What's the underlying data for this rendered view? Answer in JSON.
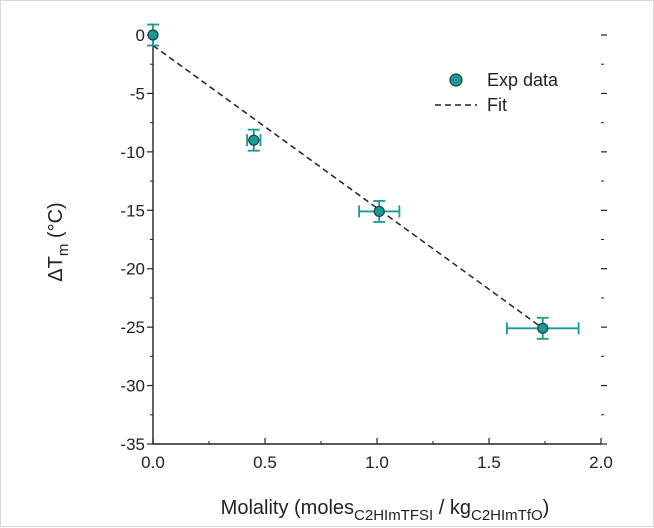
{
  "chart_data": {
    "type": "scatter",
    "x_label_parts": {
      "prefix": "Molality (moles",
      "sub1": "C2HImTFSI",
      "middle": " / kg",
      "sub2": "C2HImTfO",
      "suffix": ")"
    },
    "y_label_parts": {
      "prefix": "ΔT",
      "sub": "m",
      "suffix": " (°C)"
    },
    "xlim": [
      0.0,
      2.0
    ],
    "ylim": [
      -35,
      0
    ],
    "x_ticks": [
      0.0,
      0.5,
      1.0,
      1.5,
      2.0
    ],
    "x_tick_labels": [
      "0.0",
      "0.5",
      "1.0",
      "1.5",
      "2.0"
    ],
    "y_ticks": [
      0,
      -5,
      -10,
      -15,
      -20,
      -25,
      -30,
      -35
    ],
    "y_tick_labels": [
      "0",
      "-5",
      "-10",
      "-15",
      "-20",
      "-25",
      "-30",
      "-35"
    ],
    "grid": false,
    "legend_position": "top-right",
    "series": [
      {
        "name": "Exp data",
        "kind": "points",
        "color": "#1a9a96",
        "points": [
          {
            "x": 0.0,
            "y": 0.0,
            "xerr": 0.0,
            "yerr": 0.9
          },
          {
            "x": 0.45,
            "y": -9.0,
            "xerr": 0.03,
            "yerr": 0.9
          },
          {
            "x": 1.01,
            "y": -15.1,
            "xerr": 0.09,
            "yerr": 0.9
          },
          {
            "x": 1.74,
            "y": -25.1,
            "xerr": 0.16,
            "yerr": 0.9
          }
        ]
      },
      {
        "name": "Fit",
        "kind": "dashed-line",
        "color": "#222222",
        "x": [
          0.0,
          1.74
        ],
        "y": [
          -0.9,
          -25.1
        ]
      }
    ]
  }
}
